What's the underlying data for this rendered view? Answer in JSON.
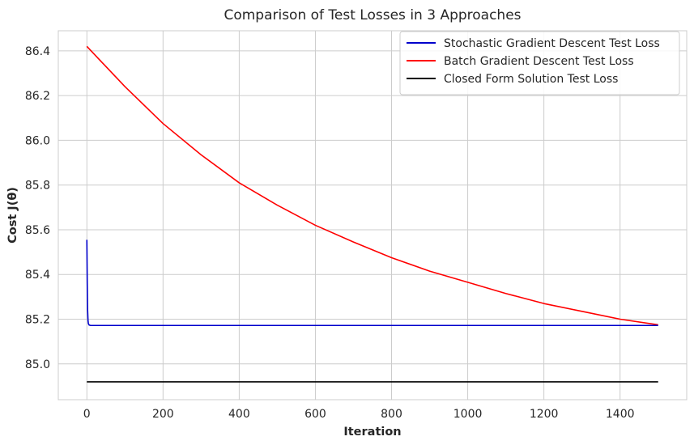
{
  "chart_data": {
    "type": "line",
    "title": "Comparison of Test Losses in 3 Approaches",
    "xlabel": "Iteration",
    "ylabel": "Cost J(θ)",
    "xlim": [
      -75,
      1575
    ],
    "ylim": [
      84.84,
      86.49
    ],
    "xticks": [
      0,
      200,
      400,
      600,
      800,
      1000,
      1200,
      1400
    ],
    "yticks": [
      85.0,
      85.2,
      85.4,
      85.6,
      85.8,
      86.0,
      86.2,
      86.4
    ],
    "xtick_labels": [
      "0",
      "200",
      "400",
      "600",
      "800",
      "1000",
      "1200",
      "1400"
    ],
    "ytick_labels": [
      "85.0",
      "85.2",
      "85.4",
      "85.6",
      "85.8",
      "86.0",
      "86.2",
      "86.4"
    ],
    "grid": true,
    "legend_position": "top-right",
    "series": [
      {
        "name": "Stochastic Gradient Descent Test Loss",
        "color": "#0000cc",
        "x": [
          0,
          1,
          2,
          3,
          4,
          6,
          8,
          10,
          20,
          50,
          100,
          200,
          400,
          600,
          800,
          1000,
          1200,
          1400,
          1500
        ],
        "y": [
          85.555,
          85.36,
          85.24,
          85.195,
          85.18,
          85.174,
          85.173,
          85.172,
          85.172,
          85.172,
          85.172,
          85.172,
          85.172,
          85.172,
          85.172,
          85.172,
          85.172,
          85.172,
          85.172
        ]
      },
      {
        "name": "Batch Gradient Descent Test Loss",
        "color": "#ff0000",
        "x": [
          0,
          100,
          200,
          300,
          400,
          500,
          600,
          700,
          800,
          900,
          1000,
          1100,
          1200,
          1300,
          1400,
          1500
        ],
        "y": [
          86.42,
          86.24,
          86.075,
          85.935,
          85.81,
          85.71,
          85.62,
          85.545,
          85.475,
          85.415,
          85.365,
          85.315,
          85.27,
          85.235,
          85.2,
          85.175
        ]
      },
      {
        "name": "Closed Form Solution Test Loss",
        "color": "#000000",
        "x": [
          0,
          1500
        ],
        "y": [
          84.92,
          84.92
        ]
      }
    ]
  }
}
